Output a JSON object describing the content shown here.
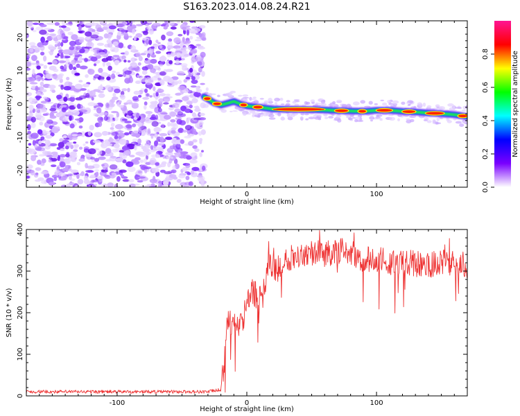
{
  "title": "S163.2023.014.08.24.R21",
  "chart_data": [
    {
      "type": "heatmap",
      "title": "",
      "xlabel": "Height of straight line (km)",
      "ylabel": "Frequency (Hz)",
      "xlim": [
        -170,
        170
      ],
      "ylim": [
        -25,
        25
      ],
      "x_ticks": [
        -100,
        0,
        100
      ],
      "y_ticks": [
        -20,
        -10,
        0,
        10,
        20
      ],
      "x_tick_labels": [
        "-100",
        "0",
        "100"
      ],
      "y_tick_labels": [
        "-20",
        "-10",
        "0",
        "10",
        "20"
      ],
      "grid": false,
      "noise_region_x": [
        -170,
        -33
      ],
      "signal_ridge": {
        "x": [
          -33,
          -30,
          -25,
          -20,
          -15,
          -10,
          -5,
          0,
          10,
          20,
          30,
          40,
          50,
          60,
          70,
          80,
          90,
          100,
          110,
          120,
          130,
          140,
          150,
          160,
          170
        ],
        "frequency": [
          2.2,
          1.5,
          0.3,
          -0.3,
          0.2,
          0.8,
          0.0,
          -0.6,
          -1.0,
          -1.5,
          -1.6,
          -1.6,
          -1.7,
          -1.8,
          -2.0,
          -2.1,
          -2.2,
          -1.9,
          -1.9,
          -2.2,
          -2.4,
          -2.7,
          -2.9,
          -3.2,
          -3.8
        ]
      },
      "peak_segments_x": [
        [
          -33,
          -28
        ],
        [
          -26,
          -20
        ],
        [
          -5,
          0
        ],
        [
          5,
          12
        ],
        [
          20,
          60
        ],
        [
          68,
          78
        ],
        [
          86,
          92
        ],
        [
          100,
          112
        ],
        [
          120,
          130
        ],
        [
          138,
          152
        ],
        [
          163,
          170
        ]
      ]
    },
    {
      "type": "line",
      "title": "",
      "xlabel": "Height of straight line (km)",
      "ylabel": "SNR (10 * v/v)",
      "xlim": [
        -170,
        170
      ],
      "ylim": [
        0,
        400
      ],
      "x_ticks": [
        -100,
        0,
        100
      ],
      "y_ticks": [
        0,
        100,
        200,
        300,
        400
      ],
      "x_tick_labels": [
        "-100",
        "0",
        "100"
      ],
      "y_tick_labels": [
        "0",
        "100",
        "200",
        "300",
        "400"
      ],
      "grid": false,
      "series": [
        {
          "color": "#ee3333",
          "envelope_x": [
            -170,
            -140,
            -100,
            -60,
            -30,
            -20,
            -18,
            -15,
            -12,
            -8,
            -4,
            0,
            4,
            8,
            12,
            14,
            16,
            18,
            22,
            26,
            30,
            40,
            50,
            60,
            70,
            80,
            90,
            100,
            110,
            120,
            130,
            140,
            150,
            160,
            170
          ],
          "envelope_y": [
            10,
            10,
            10,
            10,
            10,
            15,
            60,
            190,
            170,
            165,
            170,
            220,
            250,
            240,
            230,
            270,
            310,
            320,
            300,
            310,
            330,
            340,
            345,
            340,
            350,
            345,
            325,
            330,
            320,
            320,
            318,
            315,
            320,
            320,
            315
          ]
        }
      ]
    }
  ],
  "colorbar": {
    "label": "Normalized spectral amplitude",
    "range": [
      0,
      1
    ],
    "ticks": [
      0.0,
      0.2,
      0.4,
      0.6,
      0.8
    ],
    "tick_labels": [
      "0.0",
      "0.2",
      "0.4",
      "0.6",
      "0.8"
    ],
    "stops": [
      "#ffffff",
      "#7a00ff",
      "#0000ff",
      "#00ffff",
      "#00ff00",
      "#ffff00",
      "#ff0000",
      "#ff1493"
    ]
  }
}
